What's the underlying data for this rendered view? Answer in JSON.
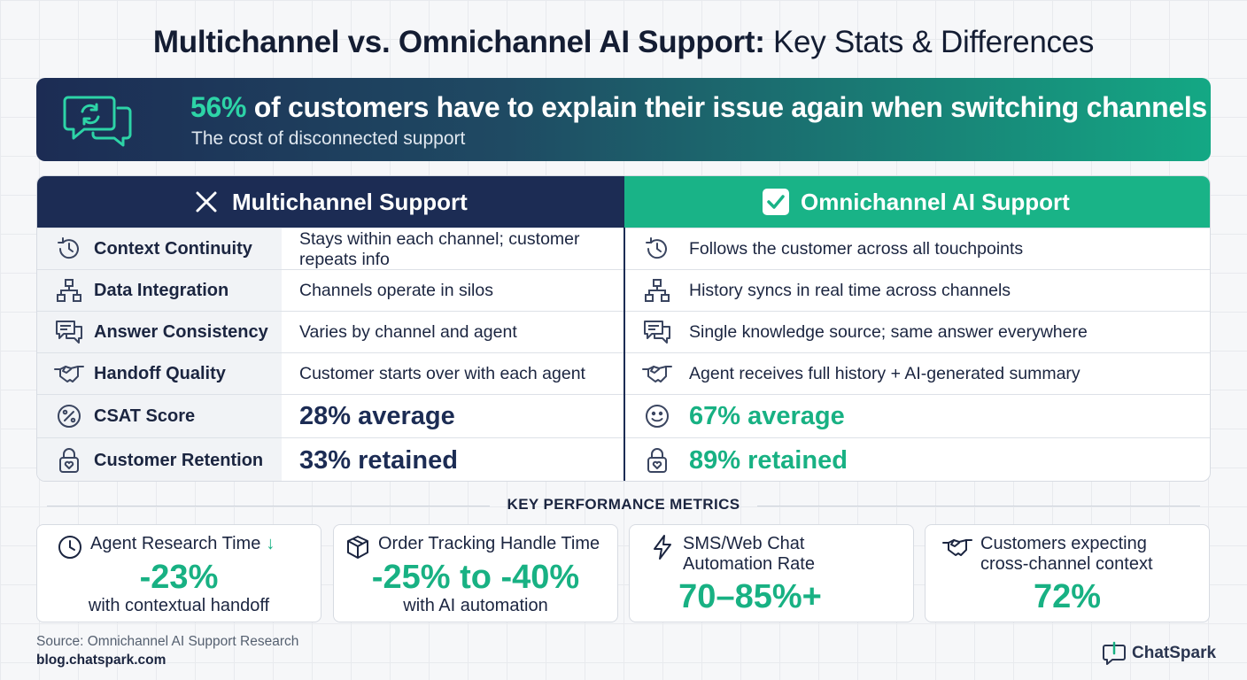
{
  "title": {
    "bold": "Multichannel vs. Omnichannel AI Support:",
    "rest": " Key Stats & Differences"
  },
  "banner": {
    "percent": "56%",
    "headline": " of customers have to explain their issue again when switching channels",
    "subtitle": "The cost of disconnected support",
    "icon": "chat-sync-icon"
  },
  "table": {
    "multichannel_header": "Multichannel Support",
    "omnichannel_header": "Omnichannel AI Support",
    "rows": [
      {
        "icon": "history-icon",
        "label": "Context Continuity",
        "multichannel": "Stays within each channel; customer repeats info",
        "omnichannel": "Follows the customer across all touchpoints"
      },
      {
        "icon": "hierarchy-icon",
        "label": "Data Integration",
        "multichannel": "Channels operate in silos",
        "omnichannel": "History syncs in real time across channels"
      },
      {
        "icon": "chat-bubbles-icon",
        "label": "Answer Consistency",
        "multichannel": "Varies by channel and agent",
        "omnichannel": "Single knowledge source; same answer everywhere"
      },
      {
        "icon": "handshake-icon",
        "label": "Handoff Quality",
        "multichannel": "Customer starts over with each agent",
        "omnichannel": "Agent receives full history + AI-generated summary"
      },
      {
        "icon": "percent-icon",
        "label": "CSAT Score",
        "multichannel": "28% average",
        "omnichannel": "67% average"
      },
      {
        "icon": "lock-heart-icon",
        "label": "Customer Retention",
        "multichannel": "33% retained",
        "omnichannel": "89% retained"
      }
    ]
  },
  "metrics": {
    "heading": "KEY PERFORMANCE METRICS",
    "cards": [
      {
        "icon": "clock-icon",
        "label": "Agent Research Time",
        "arrow": "↓",
        "value": "-23%",
        "caption": "with contextual handoff"
      },
      {
        "icon": "box-icon",
        "label": "Order Tracking Handle Time",
        "value": "-25% to -40%",
        "caption": "with AI automation"
      },
      {
        "icon": "lightning-icon",
        "label_line1": "SMS/Web Chat",
        "label_line2": "Automation Rate",
        "value": "70–85%+"
      },
      {
        "icon": "handshake-icon",
        "label_line1": "Customers expecting",
        "label_line2": "cross-channel context",
        "value": "72%"
      }
    ]
  },
  "footer": {
    "source": "Source: Omnichannel AI Support Research",
    "site": "blog.chatspark.com",
    "brand": "ChatSpark"
  },
  "colors": {
    "navy": "#1c2c54",
    "green": "#18b183"
  }
}
